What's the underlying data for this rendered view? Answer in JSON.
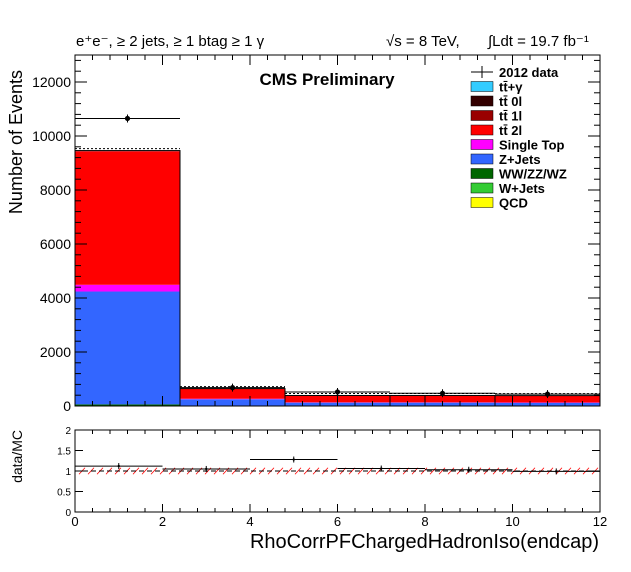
{
  "header": {
    "selection_text": "e⁺e⁻, ≥ 2 jets, ≥ 1 btag ≥ 1 γ",
    "energy_text": "√s = 8 TeV,",
    "lumi_text": "∫Ldt = 19.7 fb⁻¹",
    "cms_label": "CMS Preliminary"
  },
  "colors": {
    "ttgamma": "#33ccff",
    "tt0l": "#330000",
    "tt1l": "#990000",
    "tt2l": "#ff0000",
    "singletop": "#ff00ff",
    "zjets": "#3366ff",
    "diboson": "#006600",
    "wjets": "#33cc33",
    "qcd": "#ffff00",
    "cms_label": "#0000cc"
  },
  "chart_data": [
    {
      "type": "bar",
      "stacked": true,
      "xlabel": "",
      "ylabel": "Number of Events",
      "xlim": [
        0,
        12
      ],
      "ylim": [
        0,
        13000
      ],
      "y_ticks": [
        "0",
        "2000",
        "4000",
        "6000",
        "8000",
        "10000",
        "12000"
      ],
      "bin_edges": [
        0,
        2.4,
        4.8,
        7.2,
        9.6,
        12
      ],
      "series": [
        {
          "name": "QCD",
          "color_key": "qcd",
          "values": [
            0,
            0,
            0,
            0,
            0
          ]
        },
        {
          "name": "W+Jets",
          "color_key": "wjets",
          "values": [
            0,
            0,
            0,
            0,
            0
          ]
        },
        {
          "name": "WW/ZZ/WZ",
          "color_key": "diboson",
          "values": [
            60,
            10,
            5,
            5,
            5
          ]
        },
        {
          "name": "Z+Jets",
          "color_key": "zjets",
          "values": [
            4180,
            240,
            120,
            120,
            115
          ]
        },
        {
          "name": "Single Top",
          "color_key": "singletop",
          "values": [
            250,
            20,
            10,
            10,
            10
          ]
        },
        {
          "name": "tt̄ 2l",
          "color_key": "tt2l",
          "values": [
            4950,
            370,
            250,
            250,
            250
          ]
        },
        {
          "name": "tt̄ 1l",
          "color_key": "tt1l",
          "values": [
            0,
            0,
            0,
            0,
            0
          ]
        },
        {
          "name": "tt̄ 0l",
          "color_key": "tt0l",
          "values": [
            0,
            0,
            0,
            0,
            0
          ]
        },
        {
          "name": "tt̄+γ",
          "color_key": "ttgamma",
          "values": [
            20,
            5,
            5,
            5,
            5
          ]
        }
      ],
      "data_points": {
        "name": "2012 data",
        "x": [
          1.2,
          3.6,
          6.0,
          8.4,
          10.8
        ],
        "y": [
          10650,
          680,
          520,
          470,
          440
        ]
      },
      "legend_position": "top-right"
    },
    {
      "type": "line",
      "xlabel": "RhoCorrPFChargedHadronIso(endcap)",
      "ylabel": "data/MC",
      "xlim": [
        0,
        12
      ],
      "ylim": [
        0,
        2
      ],
      "x_ticks": [
        "0",
        "2",
        "4",
        "6",
        "8",
        "10",
        "12"
      ],
      "y_ticks": [
        "0",
        "0.5",
        "1",
        "1.5",
        "2"
      ],
      "ratio_points": {
        "x": [
          1.0,
          3.0,
          5.0,
          7.0,
          9.0,
          11.0
        ],
        "y": [
          1.12,
          1.05,
          1.28,
          1.06,
          1.03,
          0.99
        ],
        "xerr": [
          1.0,
          1.0,
          1.0,
          1.0,
          1.0,
          1.0
        ]
      },
      "reference_line": 1.0
    }
  ]
}
